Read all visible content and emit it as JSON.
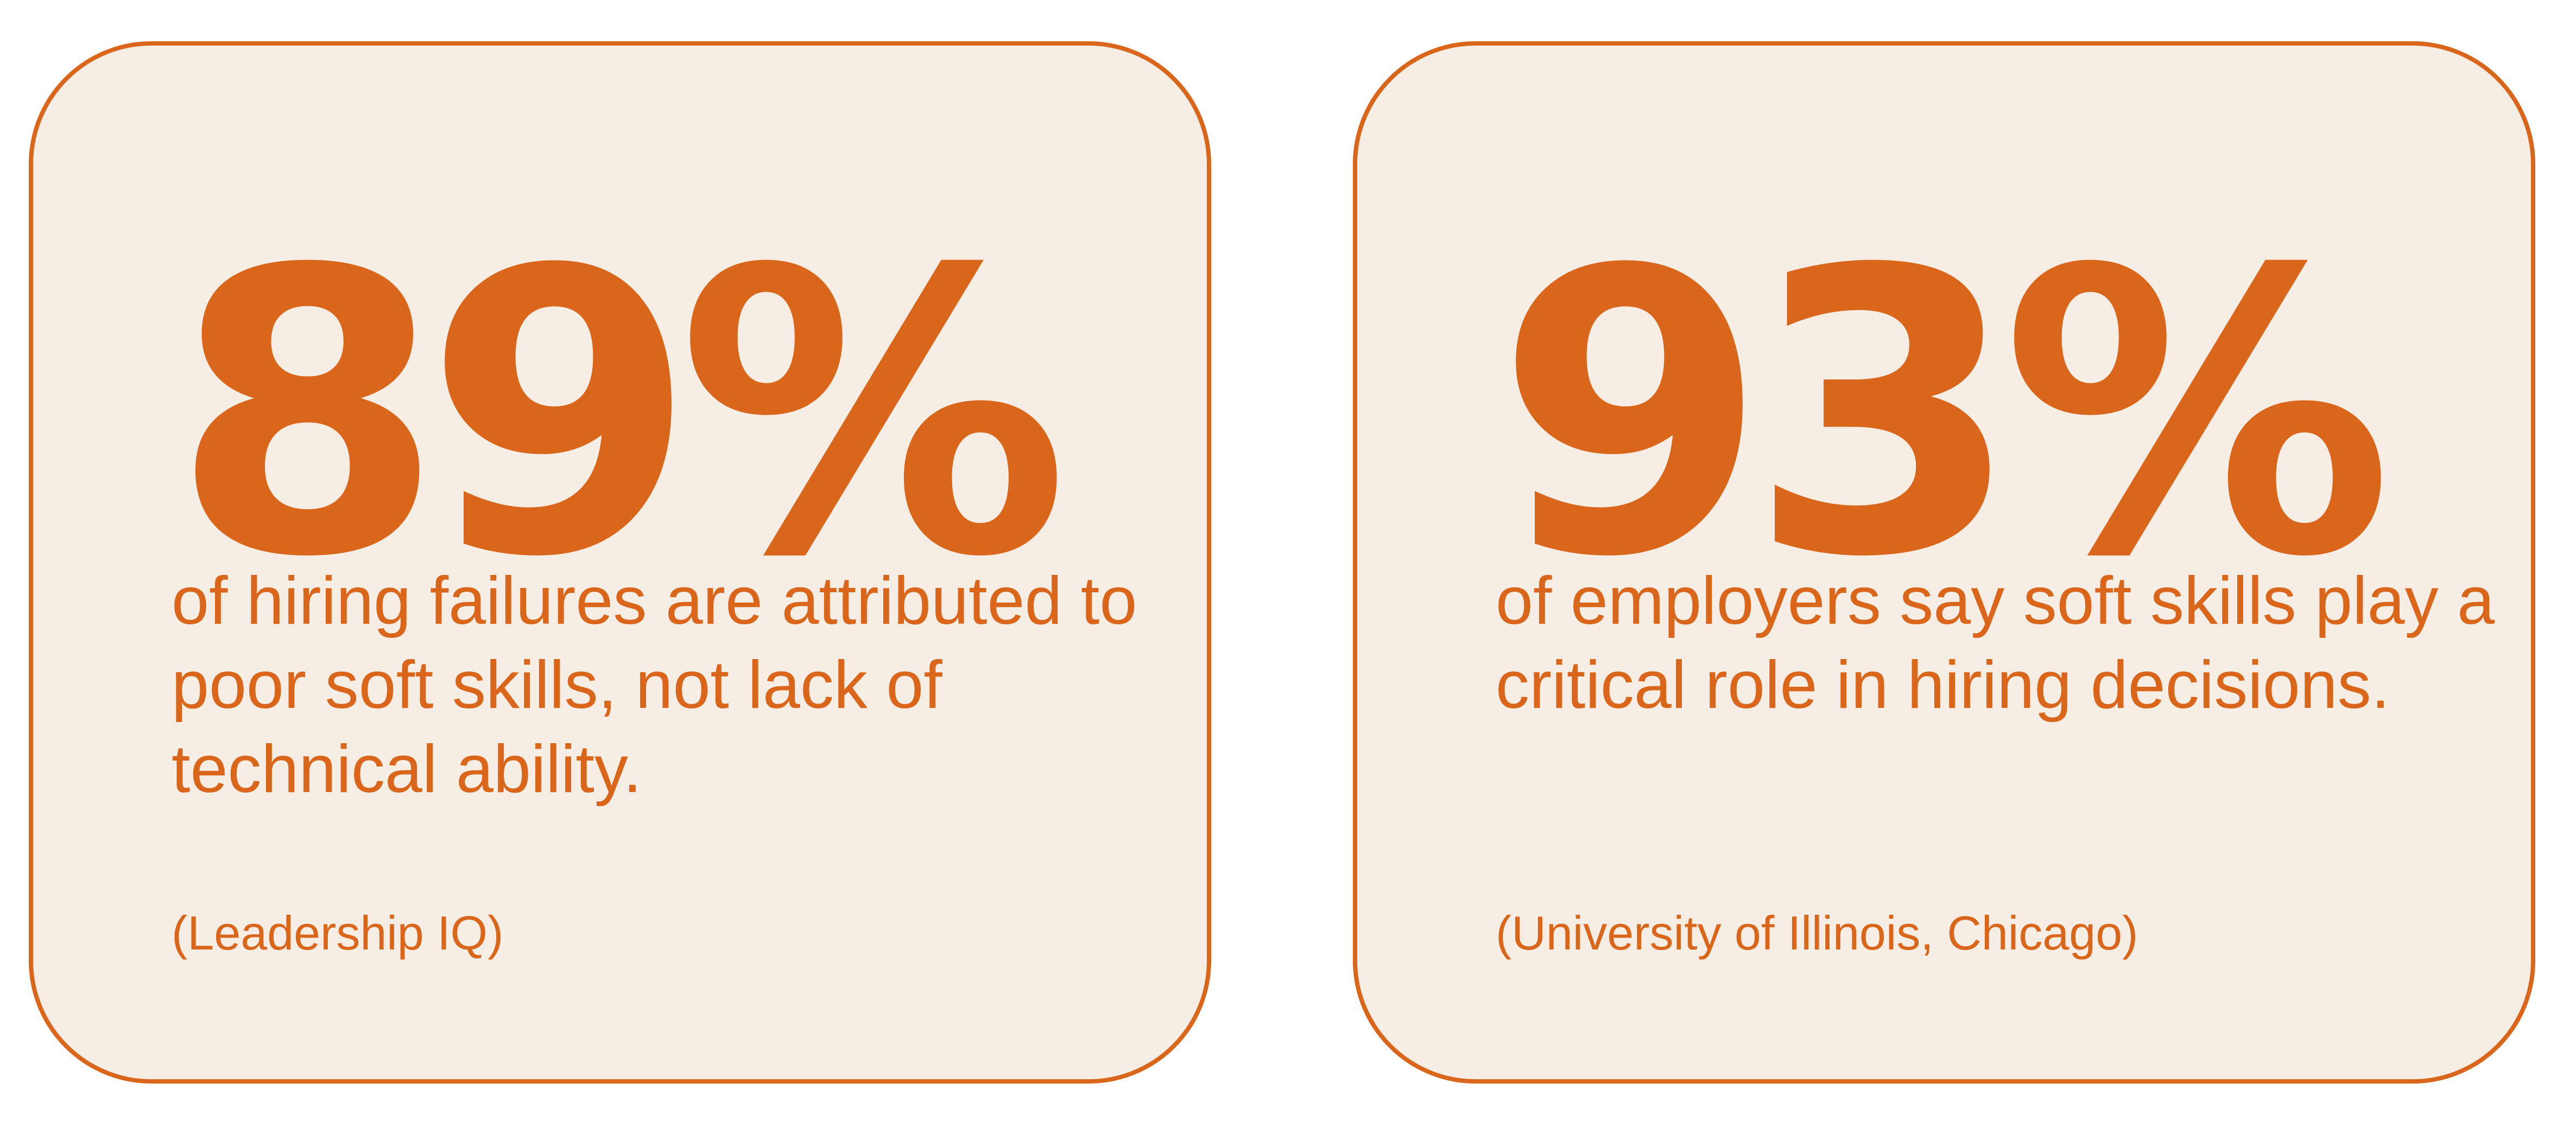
{
  "cards": [
    {
      "stat": "89%",
      "description": "of hiring failures are attributed to poor soft skills, not lack of technical ability.",
      "source": "(Leadership IQ)"
    },
    {
      "stat": "93%",
      "description": "of employers say soft skills play a critical role in hiring decisions.",
      "source": "(University of Illinois, Chicago)"
    }
  ],
  "colors": {
    "accent": "#d9661a",
    "card_background": "#f6ede4",
    "page_background": "#ffffff"
  }
}
